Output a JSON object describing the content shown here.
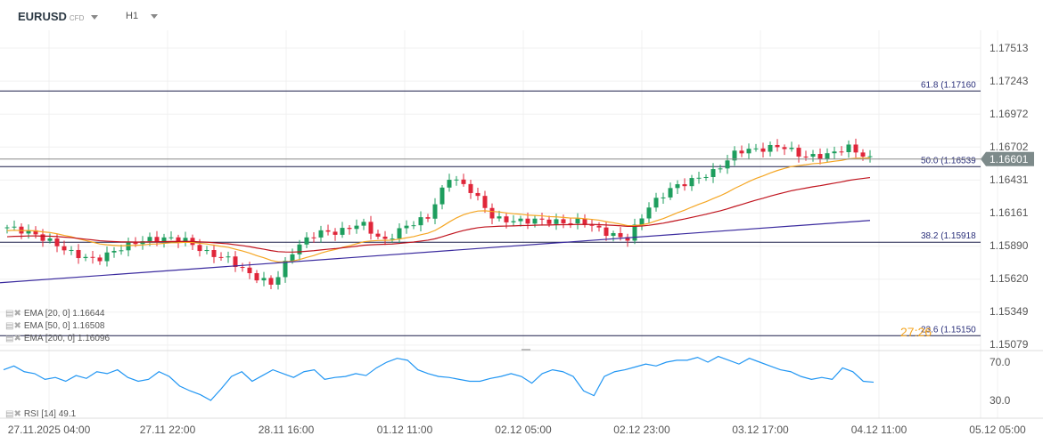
{
  "header": {
    "symbol": "EURUSD",
    "symbol_type": "CFD",
    "timeframe": "H1"
  },
  "price_axis": [
    "1.17513",
    "1.17243",
    "1.16972",
    "1.16702",
    "1.16431",
    "1.16161",
    "1.15890",
    "1.15620",
    "1.15349",
    "1.15079"
  ],
  "current_price": "1.16601",
  "countdown": "27:26",
  "fib": [
    {
      "label": "61.8 (1.17160",
      "price": 1.1716
    },
    {
      "label": "50.0 (1.16539",
      "price": 1.16539
    },
    {
      "label": "38.2 (1.15918",
      "price": 1.15918
    },
    {
      "label": "23.6 (1.15150",
      "price": 1.1515
    }
  ],
  "legend": [
    "EMA [20, 0] 1.16644",
    "EMA [50, 0] 1.16508",
    "EMA [200, 0] 1.16096"
  ],
  "rsi": {
    "label": "RSI [14] 49.1",
    "axis": [
      "70.0",
      "30.0"
    ],
    "values": [
      62,
      66,
      60,
      58,
      52,
      54,
      50,
      56,
      53,
      60,
      58,
      62,
      54,
      50,
      52,
      60,
      55,
      45,
      40,
      36,
      30,
      42,
      55,
      60,
      50,
      56,
      62,
      58,
      54,
      60,
      62,
      52,
      54,
      55,
      58,
      56,
      64,
      70,
      74,
      72,
      62,
      58,
      55,
      54,
      52,
      50,
      50,
      53,
      55,
      58,
      55,
      48,
      58,
      62,
      60,
      55,
      40,
      35,
      55,
      60,
      62,
      65,
      68,
      66,
      70,
      72,
      72,
      75,
      70,
      76,
      72,
      68,
      74,
      70,
      66,
      62,
      60,
      55,
      52,
      54,
      52,
      64,
      60,
      50,
      49
    ]
  },
  "x_axis": [
    "27.11.2025 04:00",
    "27.11 22:00",
    "28.11 16:00",
    "01.12 11:00",
    "02.12 05:00",
    "02.12 23:00",
    "03.12 17:00",
    "04.12 11:00",
    "05.12 05:00"
  ],
  "closes": [
    1.1604,
    1.16,
    1.1592,
    1.1582,
    1.1577,
    1.1586,
    1.1593,
    1.1595,
    1.1594,
    1.1583,
    1.1578,
    1.1565,
    1.1557,
    1.1587,
    1.16,
    1.16,
    1.1608,
    1.1592,
    1.1605,
    1.1612,
    1.1646,
    1.1634,
    1.1611,
    1.1609,
    1.161,
    1.1608,
    1.1609,
    1.16,
    1.1594,
    1.1621,
    1.1636,
    1.1643,
    1.165,
    1.1667,
    1.1668,
    1.1671,
    1.1662,
    1.1663,
    1.167,
    1.166
  ],
  "ema200": [
    1.15585,
    1.16097
  ],
  "colors": {
    "up": "#1e9e5e",
    "down": "#e0263a",
    "ema20": "#f5a623",
    "ema50": "#c0141e",
    "ema200": "#3a2a9e",
    "rsi": "#2196f3"
  }
}
